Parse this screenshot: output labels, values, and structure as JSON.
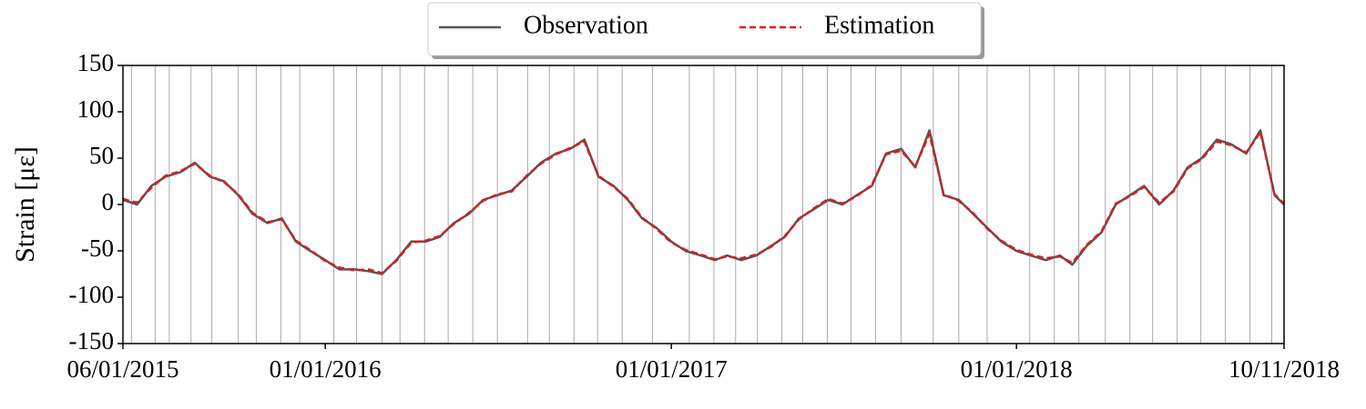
{
  "chart_data": {
    "type": "line",
    "y_label": "Strain [με]",
    "legend": "top-center",
    "xlim": [
      "2015-06-01",
      "2018-10-11"
    ],
    "xticks": [
      {
        "value": "2015-06-01",
        "label": "06/01/2015"
      },
      {
        "value": "2016-01-01",
        "label": "01/01/2016"
      },
      {
        "value": "2017-01-01",
        "label": "01/01/2017"
      },
      {
        "value": "2018-01-01",
        "label": "01/01/2018"
      },
      {
        "value": "2018-10-11",
        "label": "10/11/2018"
      }
    ],
    "ylim": [
      -150,
      150
    ],
    "yticks": [
      {
        "value": -150,
        "label": "-150"
      },
      {
        "value": -100,
        "label": "-100"
      },
      {
        "value": -50,
        "label": "-50"
      },
      0,
      50,
      100,
      150
    ],
    "vline_color": "#aaaaaa",
    "vlines": [
      "2015-06-10",
      "2015-07-05",
      "2015-07-20",
      "2015-08-12",
      "2015-09-03",
      "2015-10-01",
      "2015-10-20",
      "2015-11-15",
      "2015-12-05",
      "2016-01-10",
      "2016-02-03",
      "2016-03-01",
      "2016-03-20",
      "2016-04-15",
      "2016-05-10",
      "2016-06-05",
      "2016-07-01",
      "2016-08-02",
      "2016-08-25",
      "2016-09-20",
      "2016-10-15",
      "2016-11-10",
      "2016-12-12",
      "2017-01-20",
      "2017-02-15",
      "2017-03-10",
      "2017-04-02",
      "2017-04-28",
      "2017-05-20",
      "2017-06-15",
      "2017-07-10",
      "2017-08-05",
      "2017-09-01",
      "2017-10-05",
      "2017-11-01",
      "2017-12-01",
      "2018-01-15",
      "2018-02-10",
      "2018-03-08",
      "2018-04-05",
      "2018-05-01",
      "2018-05-25",
      "2018-06-20",
      "2018-07-15",
      "2018-08-10",
      "2018-09-05",
      "2018-09-28"
    ],
    "x": [
      "2015-06-01",
      "2015-06-16",
      "2015-07-01",
      "2015-07-16",
      "2015-08-01",
      "2015-08-16",
      "2015-09-01",
      "2015-09-16",
      "2015-10-01",
      "2015-10-16",
      "2015-11-01",
      "2015-11-16",
      "2015-12-01",
      "2015-12-16",
      "2016-01-01",
      "2016-01-16",
      "2016-02-01",
      "2016-02-16",
      "2016-03-01",
      "2016-03-16",
      "2016-04-01",
      "2016-04-16",
      "2016-05-01",
      "2016-05-16",
      "2016-06-01",
      "2016-06-16",
      "2016-07-01",
      "2016-07-16",
      "2016-08-01",
      "2016-08-16",
      "2016-09-01",
      "2016-09-16",
      "2016-10-01",
      "2016-10-16",
      "2016-11-01",
      "2016-11-16",
      "2016-12-01",
      "2016-12-16",
      "2017-01-01",
      "2017-01-16",
      "2017-02-01",
      "2017-02-16",
      "2017-03-01",
      "2017-03-16",
      "2017-04-01",
      "2017-04-16",
      "2017-05-01",
      "2017-05-16",
      "2017-06-01",
      "2017-06-16",
      "2017-07-01",
      "2017-07-16",
      "2017-08-01",
      "2017-08-16",
      "2017-09-01",
      "2017-09-16",
      "2017-10-01",
      "2017-10-16",
      "2017-11-01",
      "2017-11-16",
      "2017-12-01",
      "2017-12-16",
      "2018-01-01",
      "2018-01-16",
      "2018-02-01",
      "2018-02-16",
      "2018-03-01",
      "2018-03-16",
      "2018-04-01",
      "2018-04-16",
      "2018-05-01",
      "2018-05-16",
      "2018-06-01",
      "2018-06-16",
      "2018-07-01",
      "2018-07-16",
      "2018-08-01",
      "2018-08-16",
      "2018-09-01",
      "2018-09-16",
      "2018-10-01",
      "2018-10-11"
    ],
    "series": [
      {
        "name": "Observation",
        "color": "#555555",
        "dash": false,
        "values": [
          5,
          0,
          20,
          30,
          35,
          45,
          30,
          25,
          10,
          -10,
          -20,
          -15,
          -40,
          -50,
          -60,
          -70,
          -70,
          -72,
          -75,
          -60,
          -40,
          -40,
          -35,
          -20,
          -10,
          5,
          10,
          15,
          30,
          45,
          55,
          60,
          70,
          30,
          20,
          5,
          -15,
          -25,
          -40,
          -50,
          -55,
          -60,
          -55,
          -60,
          -55,
          -45,
          -35,
          -15,
          -5,
          5,
          0,
          10,
          20,
          55,
          60,
          40,
          80,
          10,
          5,
          -10,
          -25,
          -40,
          -50,
          -55,
          -60,
          -55,
          -65,
          -45,
          -30,
          0,
          10,
          20,
          0,
          15,
          40,
          50,
          70,
          65,
          55,
          80,
          10,
          0
        ]
      },
      {
        "name": "Estimation",
        "color": "#dd1c1c",
        "dash": true,
        "values": [
          6,
          2,
          18,
          31,
          36,
          44,
          31,
          24,
          11,
          -9,
          -19,
          -16,
          -39,
          -49,
          -61,
          -68,
          -71,
          -70,
          -74,
          -61,
          -41,
          -39,
          -34,
          -21,
          -9,
          4,
          11,
          14,
          31,
          44,
          54,
          61,
          68,
          31,
          19,
          6,
          -14,
          -26,
          -41,
          -49,
          -54,
          -59,
          -56,
          -58,
          -54,
          -46,
          -34,
          -16,
          -4,
          6,
          1,
          9,
          21,
          54,
          58,
          41,
          76,
          11,
          4,
          -9,
          -26,
          -39,
          -49,
          -54,
          -58,
          -56,
          -63,
          -44,
          -29,
          1,
          9,
          19,
          2,
          14,
          39,
          49,
          68,
          64,
          56,
          78,
          11,
          1
        ]
      }
    ]
  }
}
